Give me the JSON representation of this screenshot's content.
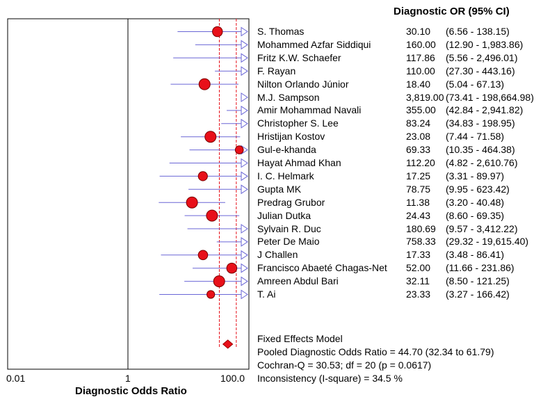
{
  "chart_data": {
    "type": "forest",
    "column_header": "Diagnostic OR (95% CI)",
    "xlabel": "Diagnostic Odds Ratio",
    "x_scale": "log",
    "xlim": [
      0.01,
      100.0
    ],
    "x_ticks": [
      "0.01",
      "1",
      "100.0"
    ],
    "studies": [
      {
        "name": "S. Thomas",
        "or_text": "30.10",
        "ci_text": "(6.56 - 138.15)",
        "or": 30.1,
        "lower": 6.56,
        "upper": 138.15
      },
      {
        "name": "Mohammed Azfar Siddiqui",
        "or_text": "160.00",
        "ci_text": "(12.90 - 1,983.86)",
        "or": 160.0,
        "lower": 12.9,
        "upper": 1983.86
      },
      {
        "name": "Fritz K.W. Schaefer",
        "or_text": "117.86",
        "ci_text": "(5.56 - 2,496.01)",
        "or": 117.86,
        "lower": 5.56,
        "upper": 2496.01
      },
      {
        "name": "F. Rayan",
        "or_text": "110.00",
        "ci_text": "(27.30 - 443.16)",
        "or": 110.0,
        "lower": 27.3,
        "upper": 443.16
      },
      {
        "name": "Nilton Orlando Júnior",
        "or_text": "18.40",
        "ci_text": "(5.04 - 67.13)",
        "or": 18.4,
        "lower": 5.04,
        "upper": 67.13
      },
      {
        "name": "M.J. Sampson",
        "or_text": "3,819.00",
        "ci_text": "(73.41 - 198,664.98)",
        "or": 3819.0,
        "lower": 73.41,
        "upper": 198664.98
      },
      {
        "name": "Amir Mohammad Navali",
        "or_text": "355.00",
        "ci_text": "(42.84 - 2,941.82)",
        "or": 355.0,
        "lower": 42.84,
        "upper": 2941.82
      },
      {
        "name": "Christopher S. Lee",
        "or_text": "83.24",
        "ci_text": "(34.83 - 198.95)",
        "or": 83.24,
        "lower": 34.83,
        "upper": 198.95
      },
      {
        "name": "Hristijan Kostov",
        "or_text": "23.08",
        "ci_text": "(7.44 - 71.58)",
        "or": 23.08,
        "lower": 7.44,
        "upper": 71.58
      },
      {
        "name": "Gul-e-khanda",
        "or_text": "69.33",
        "ci_text": "(10.35 - 464.38)",
        "or": 69.33,
        "lower": 10.35,
        "upper": 464.38
      },
      {
        "name": "Hayat Ahmad Khan",
        "or_text": "112.20",
        "ci_text": "(4.82 - 2,610.76)",
        "or": 112.2,
        "lower": 4.82,
        "upper": 2610.76
      },
      {
        "name": "I. C. Helmark",
        "or_text": "17.25",
        "ci_text": "(3.31 - 89.97)",
        "or": 17.25,
        "lower": 3.31,
        "upper": 89.97
      },
      {
        "name": "Gupta MK",
        "or_text": "78.75",
        "ci_text": "(9.95 - 623.42)",
        "or": 78.75,
        "lower": 9.95,
        "upper": 623.42
      },
      {
        "name": "Predrag Grubor",
        "or_text": "11.38",
        "ci_text": "(3.20 - 40.48)",
        "or": 11.38,
        "lower": 3.2,
        "upper": 40.48
      },
      {
        "name": "Julian Dutka",
        "or_text": "24.43",
        "ci_text": "(8.60 - 69.35)",
        "or": 24.43,
        "lower": 8.6,
        "upper": 69.35
      },
      {
        "name": "Sylvain R. Duc",
        "or_text": "180.69",
        "ci_text": "(9.57 - 3,412.22)",
        "or": 180.69,
        "lower": 9.57,
        "upper": 3412.22
      },
      {
        "name": "Peter De Maio",
        "or_text": "758.33",
        "ci_text": "(29.32 - 19,615.40)",
        "or": 758.33,
        "lower": 29.32,
        "upper": 19615.4
      },
      {
        "name": "J Challen",
        "or_text": "17.33",
        "ci_text": "(3.48 - 86.41)",
        "or": 17.33,
        "lower": 3.48,
        "upper": 86.41
      },
      {
        "name": "Francisco Abaeté Chagas-Net",
        "or_text": "52.00",
        "ci_text": "(11.66 - 231.86)",
        "or": 52.0,
        "lower": 11.66,
        "upper": 231.86
      },
      {
        "name": "Amreen Abdul Bari",
        "or_text": "32.11",
        "ci_text": "(8.50 - 121.25)",
        "or": 32.11,
        "lower": 8.5,
        "upper": 121.25
      },
      {
        "name": "T. Ai",
        "or_text": "23.33",
        "ci_text": "(3.27 - 166.42)",
        "or": 23.33,
        "lower": 3.27,
        "upper": 166.42
      }
    ],
    "pooled": {
      "or": 44.7,
      "lower": 32.34,
      "upper": 61.79
    },
    "summary_lines": [
      "Fixed Effects Model",
      "Pooled Diagnostic Odds Ratio = 44.70 (32.34 to 61.79)",
      "Cochran-Q = 30.53; df =  20 (p = 0.0617)",
      "Inconsistency (I-square) = 34.5 %"
    ]
  },
  "colors": {
    "ci_line": "#6a66d6",
    "point_fill": "#e8101a",
    "pooled_line": "#e8101a",
    "frame": "#000000"
  }
}
